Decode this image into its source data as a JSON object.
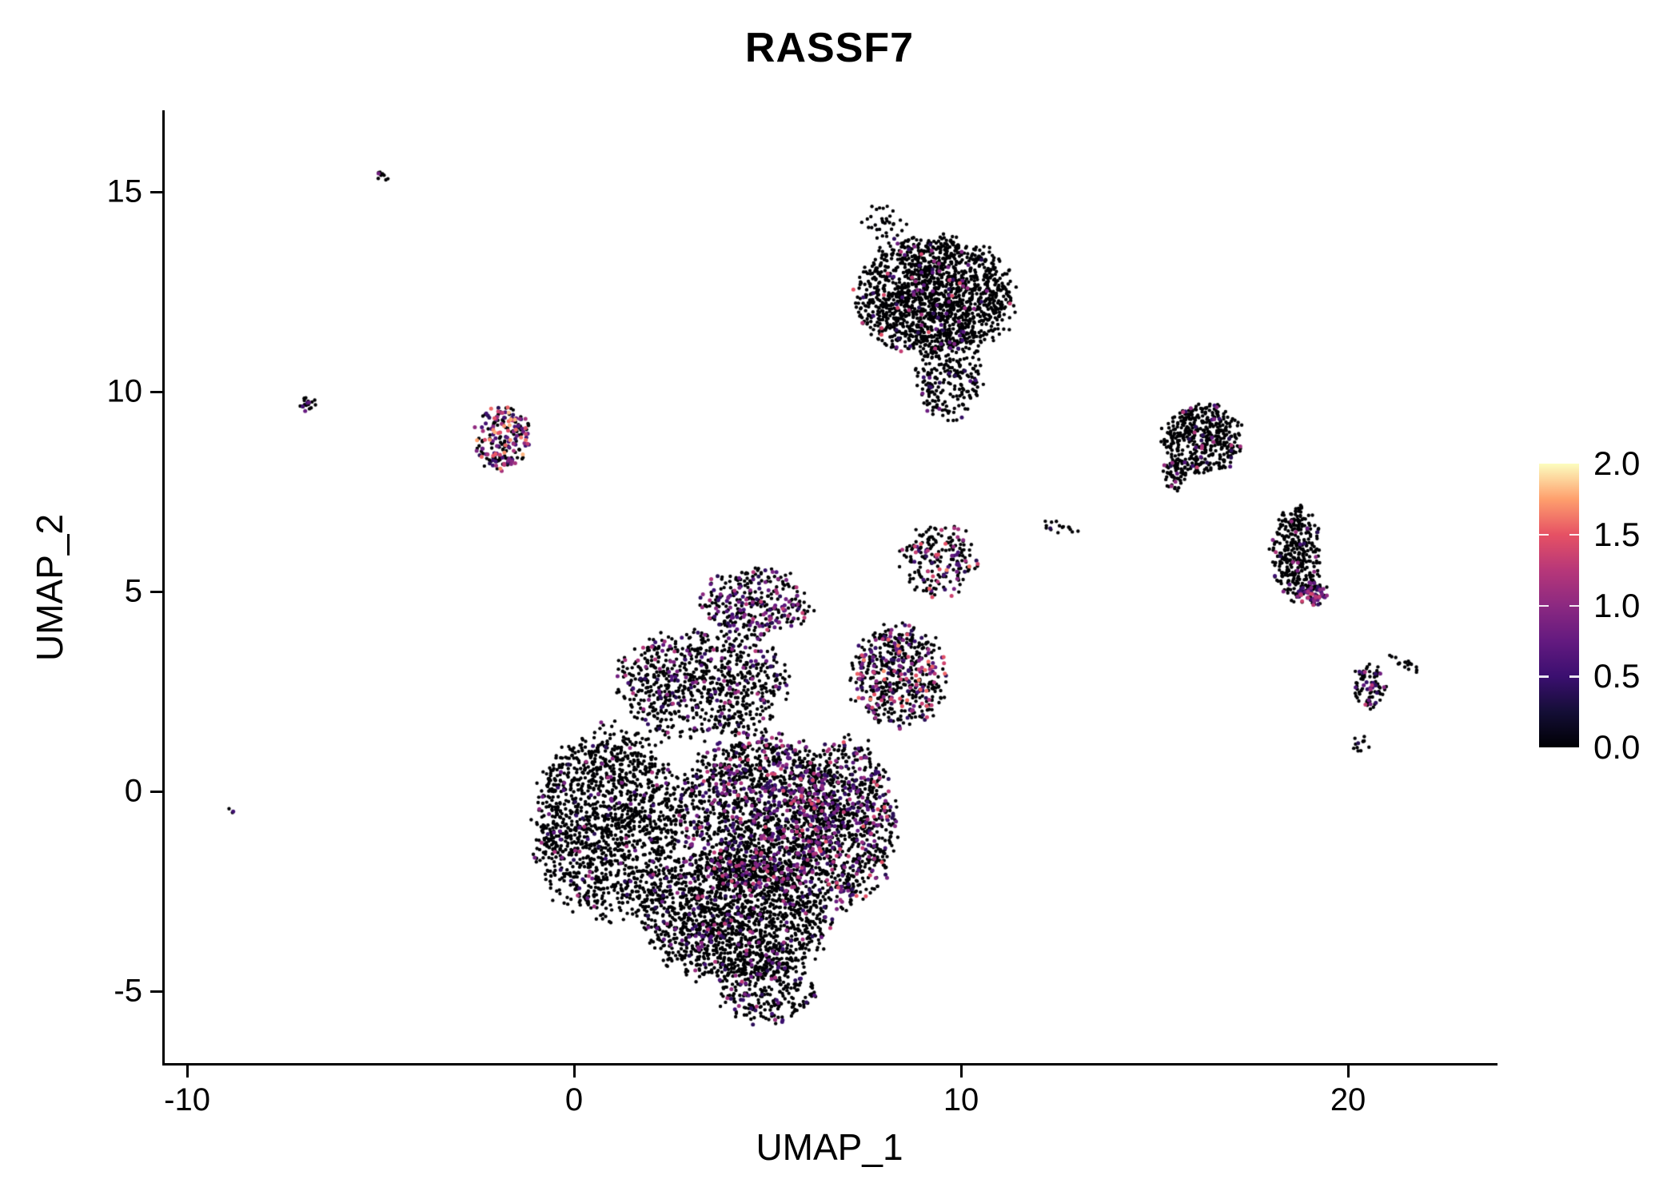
{
  "title": "RASSF7",
  "chart_data": {
    "type": "scatter",
    "title": "RASSF7",
    "xlabel": "UMAP_1",
    "ylabel": "UMAP_2",
    "xlim": [
      -10.6,
      23.8
    ],
    "ylim": [
      -6.8,
      17.0
    ],
    "xticks": [
      -10,
      0,
      10,
      20
    ],
    "xtick_labels": [
      "-10",
      "0",
      "10",
      "20"
    ],
    "yticks": [
      -5,
      0,
      5,
      10,
      15
    ],
    "ytick_labels": [
      "-5",
      "0",
      "5",
      "10",
      "15"
    ],
    "grid": false,
    "legend_position": "right",
    "point_radius_px": 2.2,
    "expressed_point_radius_px": 2.5,
    "seed": 7,
    "colorbar": {
      "min": 0.0,
      "max": 2.0,
      "ticks": [
        "2.0",
        "1.5",
        "1.0",
        "0.5",
        "0.0"
      ],
      "tick_values": [
        2.0,
        1.5,
        1.0,
        0.5,
        0.0
      ],
      "gradient_stops": [
        {
          "t": 0.0,
          "color": "#000004"
        },
        {
          "t": 0.125,
          "color": "#140e36"
        },
        {
          "t": 0.25,
          "color": "#3b0f70"
        },
        {
          "t": 0.375,
          "color": "#641a80"
        },
        {
          "t": 0.5,
          "color": "#8c2981"
        },
        {
          "t": 0.625,
          "color": "#b73779"
        },
        {
          "t": 0.75,
          "color": "#e65164"
        },
        {
          "t": 0.875,
          "color": "#fe9f6d"
        },
        {
          "t": 1.0,
          "color": "#fcfdbf"
        }
      ]
    },
    "clusters": [
      {
        "name": "main-left",
        "cx": 0.9,
        "cy": -0.8,
        "rx": 1.9,
        "ry": 2.3,
        "n": 1500,
        "frac": 0.06,
        "max": 1.2
      },
      {
        "name": "main-bottom",
        "cx": 4.2,
        "cy": -3.1,
        "rx": 2.3,
        "ry": 1.6,
        "n": 1700,
        "frac": 0.1,
        "max": 1.3
      },
      {
        "name": "bottom-tip",
        "cx": 5.0,
        "cy": -5.0,
        "rx": 1.2,
        "ry": 0.8,
        "n": 260,
        "frac": 0.12,
        "max": 1.2
      },
      {
        "name": "main-center",
        "cx": 4.8,
        "cy": -0.5,
        "rx": 2.0,
        "ry": 1.9,
        "n": 1500,
        "frac": 0.22,
        "max": 1.4
      },
      {
        "name": "main-right",
        "cx": 7.0,
        "cy": -0.8,
        "rx": 1.3,
        "ry": 2.0,
        "n": 900,
        "frac": 0.28,
        "max": 1.5
      },
      {
        "name": "main-upper",
        "cx": 3.3,
        "cy": 2.7,
        "rx": 2.1,
        "ry": 1.3,
        "n": 800,
        "frac": 0.13,
        "max": 1.25
      },
      {
        "name": "top-bump",
        "cx": 4.7,
        "cy": 4.7,
        "rx": 1.4,
        "ry": 0.85,
        "n": 330,
        "frac": 0.3,
        "max": 1.35
      },
      {
        "name": "arm",
        "cx": 8.4,
        "cy": 2.9,
        "rx": 1.2,
        "ry": 1.25,
        "n": 540,
        "frac": 0.3,
        "max": 1.7
      },
      {
        "name": "ring",
        "cx": 9.4,
        "cy": 5.8,
        "rx": 0.95,
        "ry": 0.9,
        "n": 210,
        "frac": 0.18,
        "max": 1.7
      },
      {
        "name": "top-cluster",
        "cx": 9.3,
        "cy": 12.4,
        "rx": 1.95,
        "ry": 1.45,
        "n": 1600,
        "frac": 0.05,
        "max": 1.5
      },
      {
        "name": "top-tail",
        "cx": 9.7,
        "cy": 10.4,
        "rx": 0.8,
        "ry": 1.1,
        "n": 220,
        "frac": 0.04,
        "max": 1.0
      },
      {
        "name": "top-strays",
        "cx": 8.0,
        "cy": 14.2,
        "rx": 0.55,
        "ry": 0.5,
        "n": 34,
        "frac": 0.05,
        "max": 0.8
      },
      {
        "name": "left-high",
        "cx": -1.85,
        "cy": 8.85,
        "rx": 0.7,
        "ry": 0.8,
        "n": 210,
        "frac": 0.55,
        "max": 1.9
      },
      {
        "name": "tiny-left",
        "cx": -6.9,
        "cy": 9.7,
        "rx": 0.22,
        "ry": 0.18,
        "n": 22,
        "frac": 0.2,
        "max": 0.9
      },
      {
        "name": "tiny-topleft",
        "cx": -4.95,
        "cy": 15.4,
        "rx": 0.17,
        "ry": 0.14,
        "n": 10,
        "frac": 0.3,
        "max": 0.9
      },
      {
        "name": "dot-left",
        "cx": -8.85,
        "cy": -0.45,
        "rx": 0.09,
        "ry": 0.09,
        "n": 3,
        "frac": 0.5,
        "max": 0.9
      },
      {
        "name": "right-a",
        "cx": 16.25,
        "cy": 8.85,
        "rx": 1.0,
        "ry": 0.85,
        "n": 430,
        "frac": 0.07,
        "max": 1.6
      },
      {
        "name": "right-a-tail",
        "cx": 15.55,
        "cy": 7.95,
        "rx": 0.32,
        "ry": 0.4,
        "n": 60,
        "frac": 0.12,
        "max": 1.2
      },
      {
        "name": "right-b",
        "cx": 18.65,
        "cy": 5.95,
        "rx": 0.62,
        "ry": 1.15,
        "n": 330,
        "frac": 0.08,
        "max": 1.2
      },
      {
        "name": "right-b-tip",
        "cx": 19.1,
        "cy": 4.95,
        "rx": 0.38,
        "ry": 0.32,
        "n": 80,
        "frac": 0.5,
        "max": 1.4
      },
      {
        "name": "far-right",
        "cx": 20.55,
        "cy": 2.6,
        "rx": 0.42,
        "ry": 0.55,
        "n": 85,
        "frac": 0.3,
        "max": 1.4
      },
      {
        "name": "far-right-trail",
        "cx": 21.5,
        "cy": 3.2,
        "rx": 0.5,
        "ry": 0.12,
        "n": 18,
        "frac": 0.05,
        "max": 0.8,
        "rot": -25
      },
      {
        "name": "far-right-below",
        "cx": 20.35,
        "cy": 1.25,
        "rx": 0.22,
        "ry": 0.28,
        "n": 12,
        "frac": 0.2,
        "max": 1.0
      },
      {
        "name": "connector",
        "cx": 12.6,
        "cy": 6.6,
        "rx": 0.55,
        "ry": 0.18,
        "n": 16,
        "frac": 0.1,
        "max": 0.8,
        "rot": -12
      }
    ]
  }
}
